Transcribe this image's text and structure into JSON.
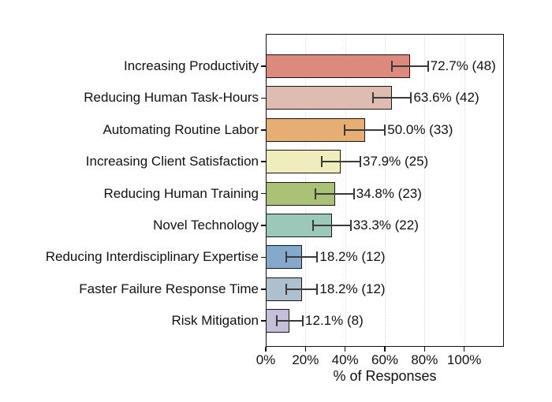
{
  "chart_data": {
    "type": "bar",
    "orientation": "horizontal",
    "title": "",
    "xlabel": "% of Responses",
    "ylabel": "",
    "categories": [
      "Increasing Productivity",
      "Reducing Human Task-Hours",
      "Automating Routine Labor",
      "Increasing Client Satisfaction",
      "Reducing Human Training",
      "Novel Technology",
      "Reducing Interdisciplinary Expertise",
      "Faster Failure Response Time",
      "Risk Mitigation"
    ],
    "values": [
      72.7,
      63.6,
      50.0,
      37.9,
      34.8,
      33.3,
      18.2,
      18.2,
      12.1
    ],
    "counts": [
      48,
      42,
      33,
      25,
      23,
      22,
      12,
      12,
      8
    ],
    "errors": [
      9.0,
      9.7,
      10.1,
      9.8,
      9.6,
      9.5,
      7.8,
      7.8,
      6.6
    ],
    "value_labels": [
      "72.7% (48)",
      "63.6% (42)",
      "50.0% (33)",
      "37.9% (25)",
      "34.8% (23)",
      "33.3% (22)",
      "18.2% (12)",
      "18.2% (12)",
      "12.1% (8)"
    ],
    "bar_colors": [
      "#dd8a7e",
      "#dfbcb2",
      "#e6ae73",
      "#efedbd",
      "#a9c276",
      "#9bc8b8",
      "#84a9cb",
      "#aebfce",
      "#c6bfd9"
    ],
    "bar_edge_color": "#151515",
    "errorbar_color": "#3a3a3a",
    "gridline_color": "#dcdce2",
    "xlim": [
      0,
      120
    ],
    "xticks": [
      0,
      20,
      40,
      60,
      80,
      100
    ],
    "xtick_labels": [
      "0%",
      "20%",
      "40%",
      "60%",
      "80%",
      "100%"
    ],
    "grid": "vertical-dotted",
    "legend": "none",
    "background_color": "#ffffff"
  }
}
